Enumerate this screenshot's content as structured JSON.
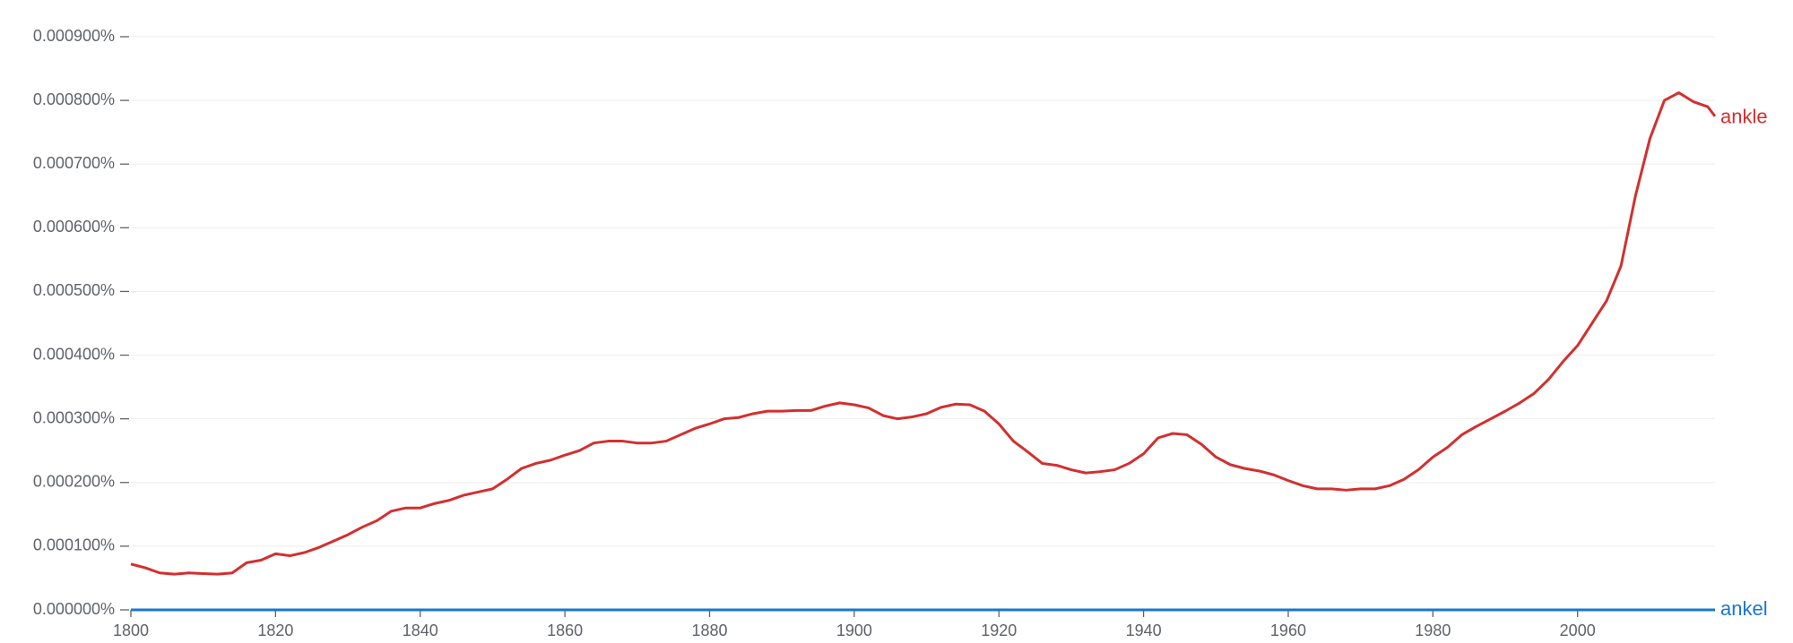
{
  "chart_data": {
    "type": "line",
    "x": [
      1800,
      1802,
      1804,
      1806,
      1808,
      1810,
      1812,
      1814,
      1816,
      1818,
      1820,
      1822,
      1824,
      1826,
      1828,
      1830,
      1832,
      1834,
      1836,
      1838,
      1840,
      1842,
      1844,
      1846,
      1848,
      1850,
      1852,
      1854,
      1856,
      1858,
      1860,
      1862,
      1864,
      1866,
      1868,
      1870,
      1872,
      1874,
      1876,
      1878,
      1880,
      1882,
      1884,
      1886,
      1888,
      1890,
      1892,
      1894,
      1896,
      1898,
      1900,
      1902,
      1904,
      1906,
      1908,
      1910,
      1912,
      1914,
      1916,
      1918,
      1920,
      1922,
      1924,
      1926,
      1928,
      1930,
      1932,
      1934,
      1936,
      1938,
      1940,
      1942,
      1944,
      1946,
      1948,
      1950,
      1952,
      1954,
      1956,
      1958,
      1960,
      1962,
      1964,
      1966,
      1968,
      1970,
      1972,
      1974,
      1976,
      1978,
      1980,
      1982,
      1984,
      1986,
      1988,
      1990,
      1992,
      1994,
      1996,
      1998,
      2000,
      2002,
      2004,
      2006,
      2008,
      2010,
      2012,
      2014,
      2016,
      2018,
      2019
    ],
    "series": [
      {
        "name": "ankle",
        "color": "#d32f2f",
        "values": [
          7.2e-05,
          6.6e-05,
          5.8e-05,
          5.6e-05,
          5.8e-05,
          5.7e-05,
          5.6e-05,
          5.8e-05,
          7.4e-05,
          7.8e-05,
          8.8e-05,
          8.5e-05,
          9e-05,
          9.8e-05,
          0.000108,
          0.000118,
          0.00013,
          0.00014,
          0.000155,
          0.00016,
          0.00016,
          0.000167,
          0.000172,
          0.00018,
          0.000185,
          0.00019,
          0.000205,
          0.000222,
          0.00023,
          0.000235,
          0.000243,
          0.00025,
          0.000262,
          0.000265,
          0.000265,
          0.000262,
          0.000262,
          0.000265,
          0.000275,
          0.000285,
          0.000292,
          0.0003,
          0.000302,
          0.000308,
          0.000312,
          0.000312,
          0.000313,
          0.000313,
          0.00032,
          0.000325,
          0.000322,
          0.000317,
          0.000305,
          0.0003,
          0.000303,
          0.000308,
          0.000318,
          0.000323,
          0.000322,
          0.000312,
          0.000292,
          0.000265,
          0.000248,
          0.00023,
          0.000227,
          0.00022,
          0.000215,
          0.000217,
          0.00022,
          0.00023,
          0.000245,
          0.00027,
          0.000277,
          0.000275,
          0.00026,
          0.00024,
          0.000228,
          0.000222,
          0.000218,
          0.000212,
          0.000203,
          0.000195,
          0.00019,
          0.00019,
          0.000188,
          0.00019,
          0.00019,
          0.000195,
          0.000205,
          0.00022,
          0.00024,
          0.000255,
          0.000275,
          0.000288,
          0.0003,
          0.000312,
          0.000325,
          0.00034,
          0.000362,
          0.00039,
          0.000415,
          0.00045,
          0.000485,
          0.00054,
          0.00065,
          0.00074,
          0.0008,
          0.000812,
          0.000798,
          0.00079,
          0.000775
        ]
      },
      {
        "name": "ankel",
        "color": "#1976d2",
        "values": [
          0,
          0,
          0,
          0,
          0,
          0,
          0,
          0,
          0,
          0,
          0,
          0,
          0,
          0,
          0,
          0,
          0,
          0,
          0,
          0,
          0,
          0,
          0,
          0,
          0,
          0,
          0,
          0,
          0,
          0,
          0,
          0,
          0,
          0,
          0,
          0,
          0,
          0,
          0,
          0,
          0,
          0,
          0,
          0,
          0,
          0,
          0,
          0,
          0,
          0,
          0,
          0,
          0,
          0,
          0,
          0,
          0,
          0,
          0,
          0,
          0,
          0,
          0,
          0,
          0,
          0,
          0,
          0,
          0,
          0,
          0,
          0,
          0,
          0,
          0,
          0,
          0,
          0,
          0,
          0,
          0,
          0,
          0,
          0,
          0,
          0,
          0,
          0,
          0,
          0,
          0,
          0,
          0,
          0,
          0,
          0,
          0,
          0,
          0,
          0,
          0,
          0,
          0,
          0,
          0,
          0,
          0,
          0,
          0,
          0,
          0
        ]
      }
    ],
    "xlim": [
      1800,
      2019
    ],
    "xticks": [
      1800,
      1820,
      1840,
      1860,
      1880,
      1900,
      1920,
      1940,
      1960,
      1980,
      2000
    ],
    "ylim": [
      0,
      0.0009
    ],
    "yticks": [
      {
        "value": 0,
        "label": "0.000000%"
      },
      {
        "value": 0.0001,
        "label": "0.000100%"
      },
      {
        "value": 0.0002,
        "label": "0.000200%"
      },
      {
        "value": 0.0003,
        "label": "0.000300%"
      },
      {
        "value": 0.0004,
        "label": "0.000400%"
      },
      {
        "value": 0.0005,
        "label": "0.000500%"
      },
      {
        "value": 0.0006,
        "label": "0.000600%"
      },
      {
        "value": 0.0007,
        "label": "0.000700%"
      },
      {
        "value": 0.0008,
        "label": "0.000800%"
      },
      {
        "value": 0.0009,
        "label": "0.000900%"
      }
    ],
    "grid": true
  }
}
